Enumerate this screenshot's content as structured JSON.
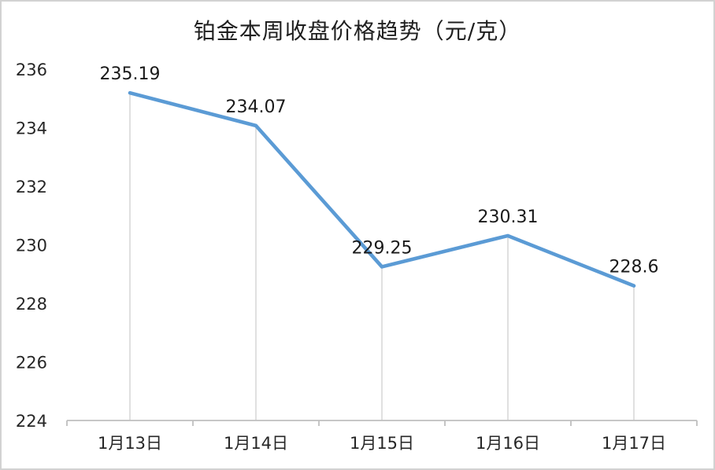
{
  "page": {
    "background": "#FFFFFF",
    "frame_border_color": "#D2D2D2"
  },
  "chart_data": {
    "type": "line",
    "title": "铂金本周收盘价格趋势（元/克）",
    "categories": [
      "1月13日",
      "1月14日",
      "1月15日",
      "1月16日",
      "1月17日"
    ],
    "values": [
      235.19,
      234.07,
      229.25,
      230.31,
      228.6
    ],
    "data_labels": [
      "235.19",
      "234.07",
      "229.25",
      "230.31",
      "228.6"
    ],
    "xlabel": "",
    "ylabel": "",
    "ylim": [
      224,
      236
    ],
    "y_ticks": [
      224,
      226,
      228,
      230,
      232,
      234,
      236
    ],
    "grid": "off",
    "drop_lines": true,
    "legend": "none",
    "colors": {
      "line": "#5B9BD5",
      "drop_line": "#D9D9D9",
      "axis_line": "#BFBFBF",
      "tick_label": "#262626",
      "data_label": "#1A1A1A",
      "title": "#1F1F1F"
    }
  }
}
